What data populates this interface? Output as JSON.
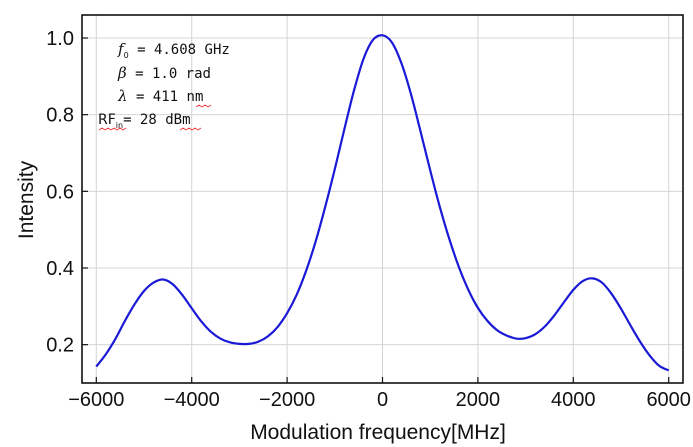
{
  "chart_data": {
    "type": "line",
    "title": "",
    "xlabel": "Modulation frequency[MHz]",
    "ylabel": "Intensity",
    "xlim": [
      -6300,
      6300
    ],
    "ylim": [
      0.1,
      1.06
    ],
    "grid": true,
    "line_color": "#1a1ad6",
    "x_ticks": [
      -6000,
      -4000,
      -2000,
      0,
      2000,
      4000,
      6000
    ],
    "x_tick_labels": [
      "−6000",
      "−4000",
      "−2000",
      "0",
      "2000",
      "4000",
      "6000"
    ],
    "y_ticks": [
      0.2,
      0.4,
      0.6,
      0.8,
      1.0
    ],
    "y_tick_labels": [
      "0.2",
      "0.4",
      "0.6",
      "0.8",
      "1.0"
    ],
    "series": [
      {
        "name": "Intensity",
        "x": [
          -6000,
          -5800,
          -5600,
          -5400,
          -5200,
          -5000,
          -4800,
          -4600,
          -4400,
          -4200,
          -4000,
          -3800,
          -3600,
          -3400,
          -3200,
          -3000,
          -2800,
          -2600,
          -2400,
          -2200,
          -2000,
          -1800,
          -1600,
          -1400,
          -1200,
          -1000,
          -800,
          -600,
          -400,
          -200,
          0,
          200,
          400,
          600,
          800,
          1000,
          1200,
          1400,
          1600,
          1800,
          2000,
          2200,
          2400,
          2600,
          2800,
          3000,
          3200,
          3400,
          3600,
          3800,
          4000,
          4200,
          4400,
          4600,
          4800,
          5000,
          5200,
          5400,
          5600,
          5800,
          6000
        ],
        "y": [
          0.143,
          0.175,
          0.215,
          0.262,
          0.305,
          0.34,
          0.362,
          0.37,
          0.358,
          0.33,
          0.295,
          0.261,
          0.234,
          0.216,
          0.206,
          0.202,
          0.202,
          0.208,
          0.222,
          0.246,
          0.282,
          0.33,
          0.393,
          0.47,
          0.56,
          0.658,
          0.762,
          0.862,
          0.945,
          0.995,
          1.007,
          0.988,
          0.933,
          0.852,
          0.755,
          0.655,
          0.56,
          0.476,
          0.403,
          0.343,
          0.296,
          0.262,
          0.238,
          0.224,
          0.216,
          0.217,
          0.227,
          0.247,
          0.276,
          0.31,
          0.343,
          0.366,
          0.373,
          0.362,
          0.333,
          0.294,
          0.25,
          0.208,
          0.172,
          0.145,
          0.133
        ]
      }
    ],
    "annotations": [
      {
        "symbol": "f",
        "sub": "0",
        "text": " = 4.608 GHz"
      },
      {
        "symbol": "β",
        "sub": "",
        "text": " = 1.0 rad"
      },
      {
        "symbol": "λ",
        "sub": "",
        "text": " = 411 nm"
      },
      {
        "symbol": "RF",
        "sub": "in",
        "text": "= 28 dBm"
      }
    ]
  }
}
